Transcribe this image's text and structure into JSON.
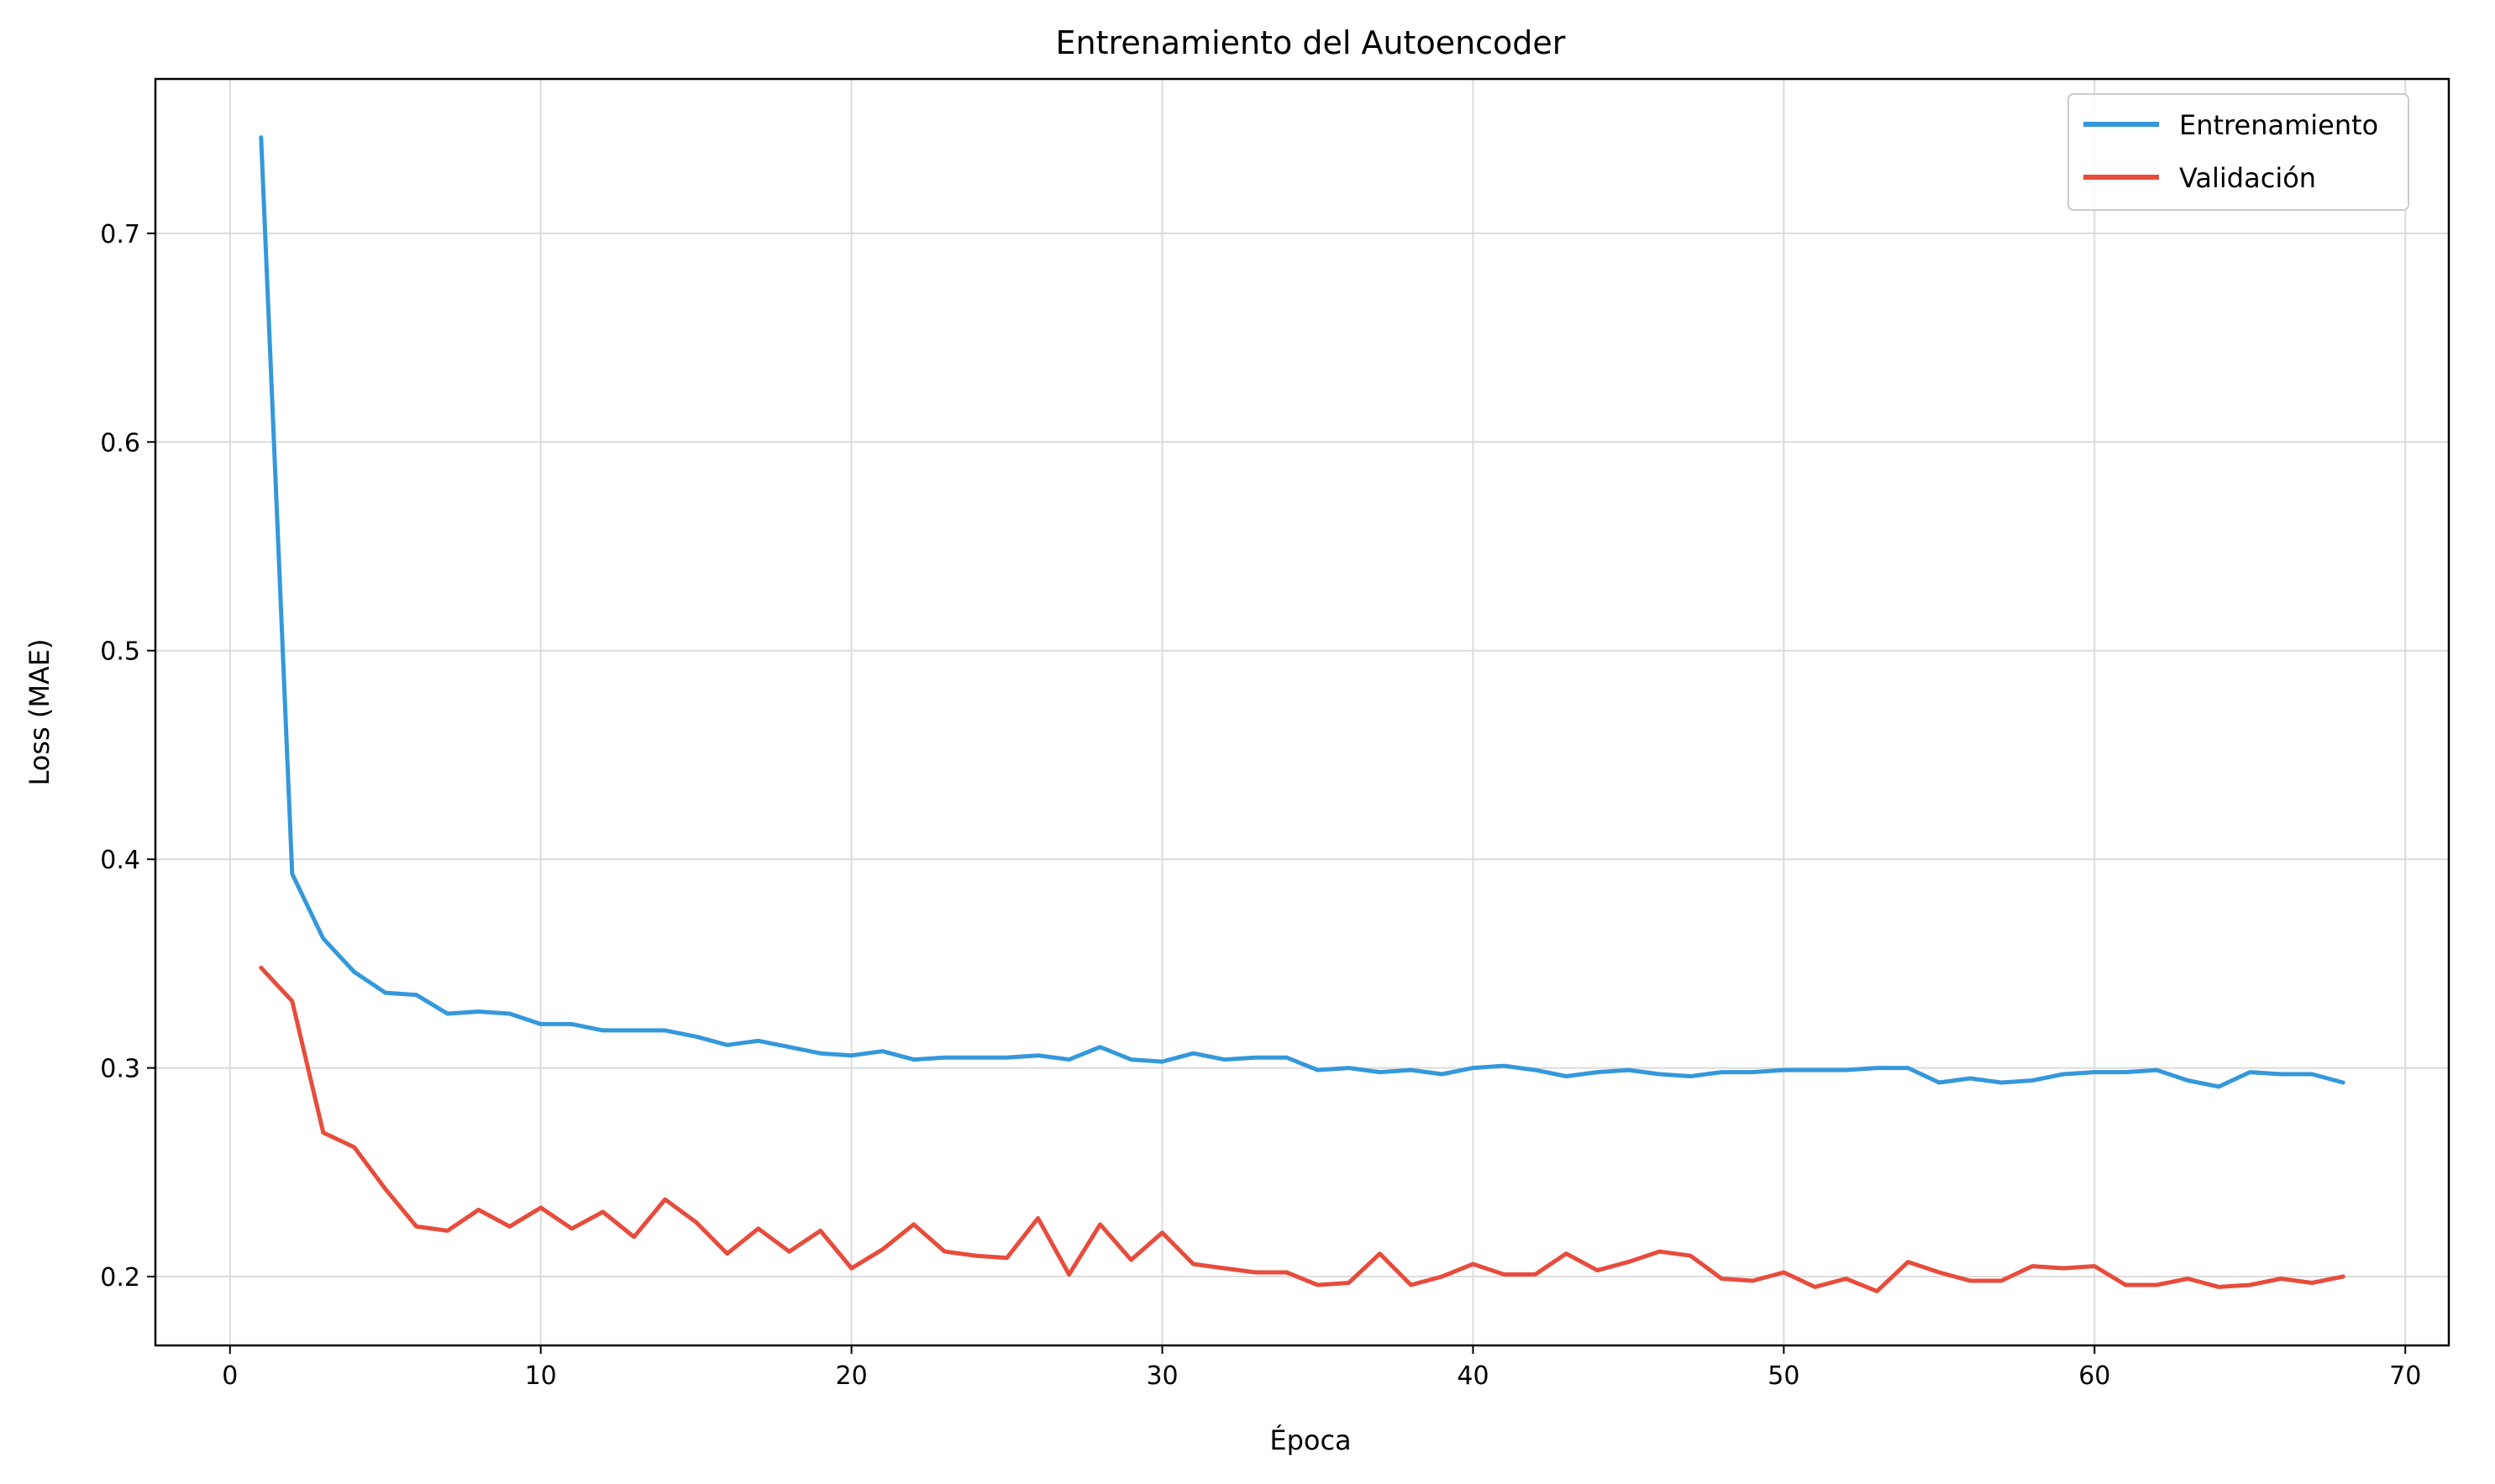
{
  "chart_data": {
    "type": "line",
    "title": "Entrenamiento del Autoencoder",
    "xlabel": "Época",
    "ylabel": "Loss (MAE)",
    "xlim": [
      -2.4,
      71.4
    ],
    "ylim": [
      0.167,
      0.774
    ],
    "xticks": [
      0,
      10,
      20,
      30,
      40,
      50,
      60,
      70
    ],
    "yticks": [
      0.2,
      0.3,
      0.4,
      0.5,
      0.6,
      0.7
    ],
    "xtick_labels": [
      "0",
      "10",
      "20",
      "30",
      "40",
      "50",
      "60",
      "70"
    ],
    "ytick_labels": [
      "0.2",
      "0.3",
      "0.4",
      "0.5",
      "0.6",
      "0.7"
    ],
    "grid": true,
    "legend_position": "top-right",
    "x": [
      1,
      2,
      3,
      4,
      5,
      6,
      7,
      8,
      9,
      10,
      11,
      12,
      13,
      14,
      15,
      16,
      17,
      18,
      19,
      20,
      21,
      22,
      23,
      24,
      25,
      26,
      27,
      28,
      29,
      30,
      31,
      32,
      33,
      34,
      35,
      36,
      37,
      38,
      39,
      40,
      41,
      42,
      43,
      44,
      45,
      46,
      47,
      48,
      49,
      50,
      51,
      52,
      53,
      54,
      55,
      56,
      57,
      58,
      59,
      60,
      61,
      62,
      63,
      64,
      65,
      66,
      67,
      68
    ],
    "series": [
      {
        "name": "Entrenamiento",
        "color": "#3498db",
        "values": [
          0.746,
          0.393,
          0.362,
          0.346,
          0.336,
          0.335,
          0.326,
          0.327,
          0.326,
          0.321,
          0.321,
          0.318,
          0.318,
          0.318,
          0.315,
          0.311,
          0.313,
          0.31,
          0.307,
          0.306,
          0.308,
          0.304,
          0.305,
          0.305,
          0.305,
          0.306,
          0.304,
          0.31,
          0.304,
          0.303,
          0.307,
          0.304,
          0.305,
          0.305,
          0.299,
          0.3,
          0.298,
          0.299,
          0.297,
          0.3,
          0.301,
          0.299,
          0.296,
          0.298,
          0.299,
          0.297,
          0.296,
          0.298,
          0.298,
          0.299,
          0.299,
          0.299,
          0.3,
          0.3,
          0.293,
          0.295,
          0.293,
          0.294,
          0.297,
          0.298,
          0.298,
          0.299,
          0.294,
          0.291,
          0.298,
          0.297,
          0.297,
          0.293
        ]
      },
      {
        "name": "Validación",
        "color": "#e74c3c",
        "values": [
          0.348,
          0.332,
          0.269,
          0.262,
          0.242,
          0.224,
          0.222,
          0.232,
          0.224,
          0.233,
          0.223,
          0.231,
          0.219,
          0.237,
          0.226,
          0.211,
          0.223,
          0.212,
          0.222,
          0.204,
          0.213,
          0.225,
          0.212,
          0.21,
          0.209,
          0.228,
          0.201,
          0.225,
          0.208,
          0.221,
          0.206,
          0.204,
          0.202,
          0.202,
          0.196,
          0.197,
          0.211,
          0.196,
          0.2,
          0.206,
          0.201,
          0.201,
          0.211,
          0.203,
          0.207,
          0.212,
          0.21,
          0.199,
          0.198,
          0.202,
          0.195,
          0.199,
          0.193,
          0.207,
          0.202,
          0.198,
          0.198,
          0.205,
          0.204,
          0.205,
          0.196,
          0.196,
          0.199,
          0.195,
          0.196,
          0.199,
          0.197,
          0.2
        ]
      }
    ]
  }
}
